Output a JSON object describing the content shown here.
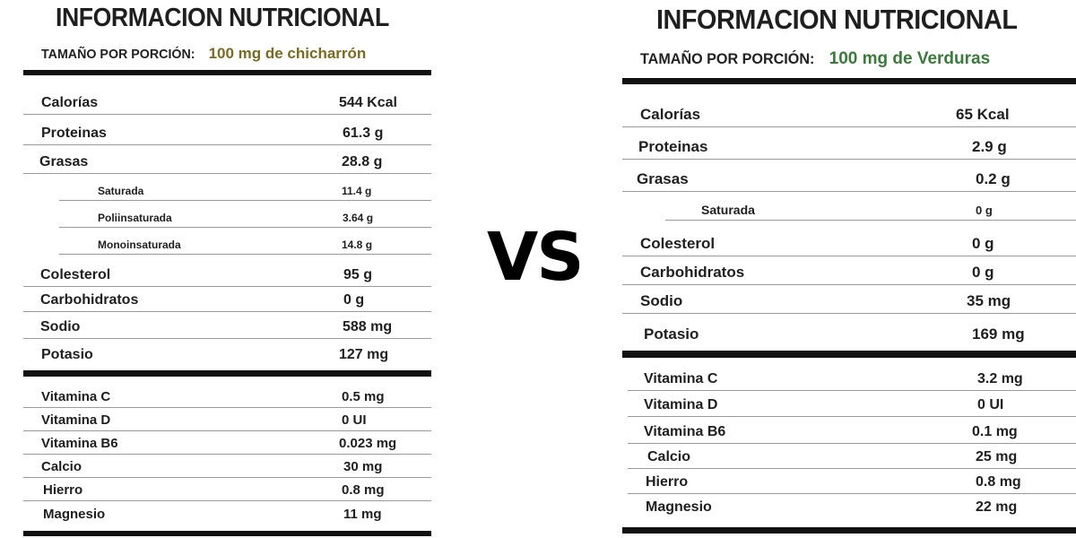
{
  "vs_label": "VS",
  "left": {
    "title": "INFORMACION NUTRICIONAL",
    "serving_label": "TAMAÑO POR PORCIÓN:",
    "serving_value": "100 mg de chicharrón",
    "section1": [
      {
        "name": "Calorías",
        "value": "544 Kcal"
      },
      {
        "name": "Proteinas",
        "value": "61.3 g"
      },
      {
        "name": "Grasas",
        "value": "28.8 g"
      },
      {
        "name": "Saturada",
        "value": "11.4 g"
      },
      {
        "name": "Poliinsaturada",
        "value": "3.64 g"
      },
      {
        "name": "Monoinsaturada",
        "value": "14.8 g"
      },
      {
        "name": "Colesterol",
        "value": "95 g"
      },
      {
        "name": "Carbohidratos",
        "value": "0 g"
      },
      {
        "name": "Sodio",
        "value": "588 mg"
      },
      {
        "name": "Potasio",
        "value": "127 mg"
      }
    ],
    "section2": [
      {
        "name": "Vitamina C",
        "value": "0.5 mg"
      },
      {
        "name": "Vitamina D",
        "value": "0 UI"
      },
      {
        "name": "Vitamina B6",
        "value": "0.023 mg"
      },
      {
        "name": "Calcio",
        "value": "30 mg"
      },
      {
        "name": "Hierro",
        "value": "0.8 mg"
      },
      {
        "name": "Magnesio",
        "value": "11 mg"
      }
    ]
  },
  "right": {
    "title": "INFORMACION NUTRICIONAL",
    "serving_label": "TAMAÑO POR PORCIÓN:",
    "serving_value": "100 mg de Verduras",
    "section1": [
      {
        "name": "Calorías",
        "value": "65 Kcal"
      },
      {
        "name": "Proteinas",
        "value": "2.9 g"
      },
      {
        "name": "Grasas",
        "value": "0.2 g"
      },
      {
        "name": "Saturada",
        "value": "0 g"
      },
      {
        "name": "Colesterol",
        "value": "0 g"
      },
      {
        "name": "Carbohidratos",
        "value": "0 g"
      },
      {
        "name": "Sodio",
        "value": "35 mg"
      },
      {
        "name": "Potasio",
        "value": "169 mg"
      }
    ],
    "section2": [
      {
        "name": "Vitamina C",
        "value": "3.2 mg"
      },
      {
        "name": "Vitamina D",
        "value": "0 UI"
      },
      {
        "name": "Vitamina B6",
        "value": "0.1 mg"
      },
      {
        "name": "Calcio",
        "value": "25 mg"
      },
      {
        "name": "Hierro",
        "value": "0.8 mg"
      },
      {
        "name": "Magnesio",
        "value": "22 mg"
      }
    ]
  }
}
